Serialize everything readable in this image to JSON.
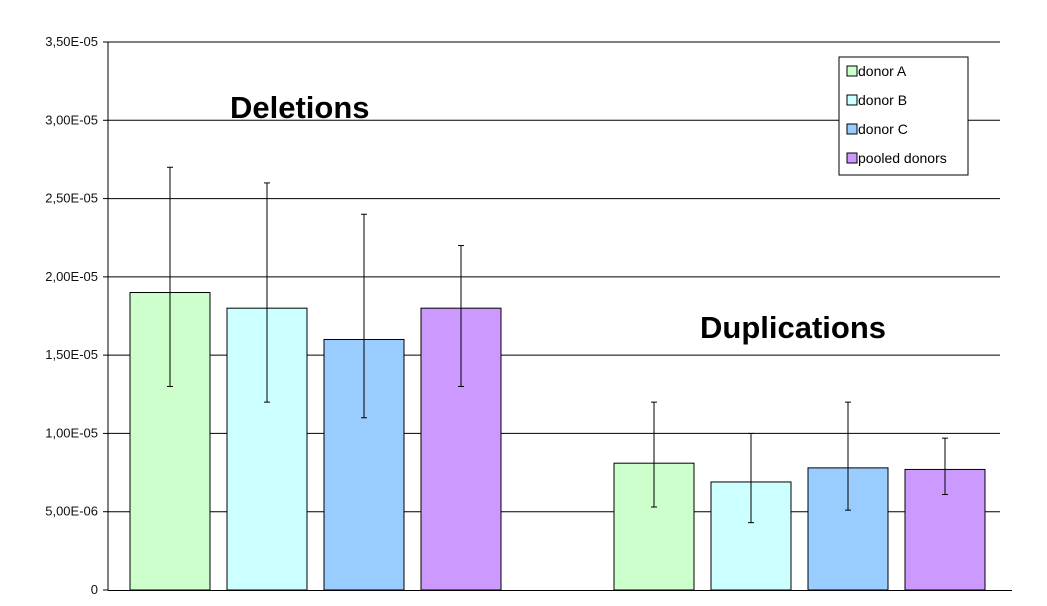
{
  "chart_data": {
    "type": "bar",
    "categories": [
      "Deletions",
      "Duplications"
    ],
    "series": [
      {
        "name": "donor A",
        "color": "#ccffcc",
        "values": [
          1.9e-05,
          8.1e-06
        ],
        "err_low": [
          1.3e-05,
          5.3e-06
        ],
        "err_high": [
          2.7e-05,
          1.2e-05
        ]
      },
      {
        "name": "donor B",
        "color": "#ccffff",
        "values": [
          1.8e-05,
          6.9e-06
        ],
        "err_low": [
          1.2e-05,
          4.3e-06
        ],
        "err_high": [
          2.6e-05,
          1e-05
        ]
      },
      {
        "name": "donor C",
        "color": "#99ccff",
        "values": [
          1.6e-05,
          7.8e-06
        ],
        "err_low": [
          1.1e-05,
          5.1e-06
        ],
        "err_high": [
          2.4e-05,
          1.2e-05
        ]
      },
      {
        "name": "pooled donors",
        "color": "#cc99ff",
        "values": [
          1.8e-05,
          7.7e-06
        ],
        "err_low": [
          1.3e-05,
          6.1e-06
        ],
        "err_high": [
          2.2e-05,
          9.7e-06
        ]
      }
    ],
    "ylim": [
      0,
      3.5e-05
    ],
    "yticks": [
      0,
      5e-06,
      1e-05,
      1.5e-05,
      2e-05,
      2.5e-05,
      3e-05,
      3.5e-05
    ],
    "ytick_labels": [
      "0",
      "5,00E-06",
      "1,00E-05",
      "1,50E-05",
      "2,00E-05",
      "2,50E-05",
      "3,00E-05",
      "3,50E-05"
    ],
    "grid": true,
    "legend_position": "top-right",
    "title": "",
    "xlabel": "",
    "ylabel": ""
  }
}
